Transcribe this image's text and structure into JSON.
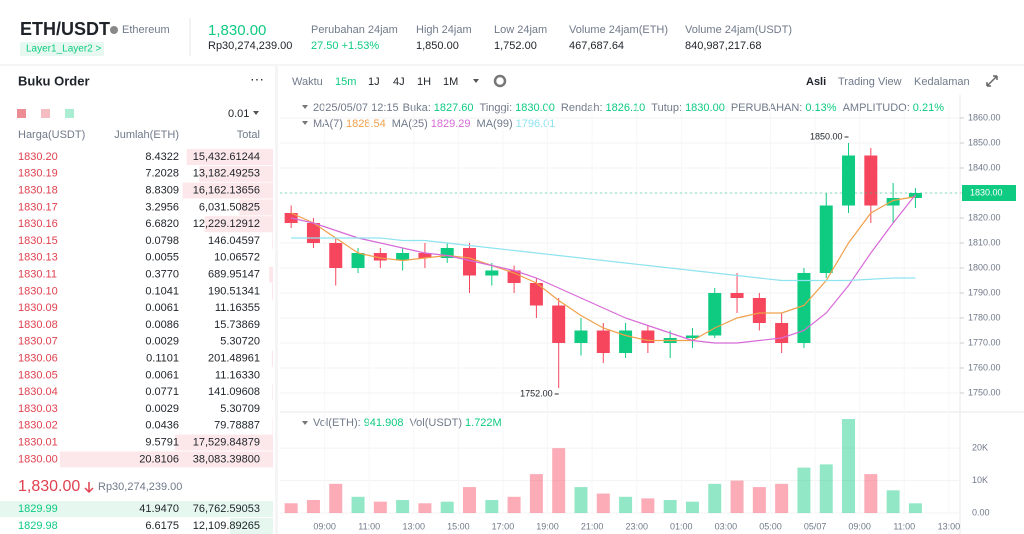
{
  "header": {
    "symbol": "ETH/USDT",
    "name": "Ethereum",
    "tag": "Layer1_Layer2 >",
    "price": "1,830.00",
    "fiat": "Rp30,274,239.00",
    "stats": [
      {
        "label": "Perubahan 24jam",
        "value": "27.50 +1.53%"
      },
      {
        "label": "High 24jam",
        "value": "1,850.00"
      },
      {
        "label": "Low 24jam",
        "value": "1,752.00"
      },
      {
        "label": "Volume 24jam(ETH)",
        "value": "467,687.64"
      },
      {
        "label": "Volume 24jam(USDT)",
        "value": "840,987,217.68"
      }
    ]
  },
  "toolbar": {
    "intervals": [
      "Waktu",
      "15m",
      "1J",
      "4J",
      "1H",
      "1M"
    ],
    "views": [
      "Asli",
      "Trading View",
      "Kedalaman"
    ]
  },
  "info": {
    "date": "2025/05/07 12:15",
    "items": [
      {
        "label": "Buka:",
        "value": "1827.60"
      },
      {
        "label": "Tinggi:",
        "value": "1830.00"
      },
      {
        "label": "Rendah:",
        "value": "1826.10"
      },
      {
        "label": "Tutup:",
        "value": "1830.00"
      },
      {
        "label": "PERUBAHAN:",
        "value": "0.13%"
      },
      {
        "label": "AMPLITUDO:",
        "value": "0.21%"
      }
    ]
  },
  "volume_info": [
    {
      "label": "Vol(ETH):",
      "value": "941.908"
    },
    {
      "label": "Vol(USDT)",
      "value": "1.722M"
    }
  ],
  "order_book": {
    "title": "Buku Order",
    "tick": "0.01",
    "columns": [
      "Harga(USDT)",
      "Jumlah(ETH)",
      "Total"
    ],
    "asks": [
      [
        "1830.20",
        "8.4322",
        "15,432.61244"
      ],
      [
        "1830.19",
        "7.2028",
        "13,182.49253"
      ],
      [
        "1830.18",
        "8.8309",
        "16,162.13656"
      ],
      [
        "1830.17",
        "3.2956",
        "6,031.50825"
      ],
      [
        "1830.16",
        "6.6820",
        "12,229.12912"
      ],
      [
        "1830.15",
        "0.0798",
        "146.04597"
      ],
      [
        "1830.13",
        "0.0055",
        "10.06572"
      ],
      [
        "1830.11",
        "0.3770",
        "689.95147"
      ],
      [
        "1830.10",
        "0.1041",
        "190.51341"
      ],
      [
        "1830.09",
        "0.0061",
        "11.16355"
      ],
      [
        "1830.08",
        "0.0086",
        "15.73869"
      ],
      [
        "1830.07",
        "0.0029",
        "5.30720"
      ],
      [
        "1830.06",
        "0.1101",
        "201.48961"
      ],
      [
        "1830.05",
        "0.0061",
        "11.16330"
      ],
      [
        "1830.04",
        "0.0771",
        "141.09608"
      ],
      [
        "1830.03",
        "0.0029",
        "5.30709"
      ],
      [
        "1830.02",
        "0.0436",
        "79.78887"
      ],
      [
        "1830.01",
        "9.5791",
        "17,529.84879"
      ],
      [
        "1830.00",
        "20.8106",
        "38,083.39800"
      ]
    ],
    "last": "1,830.00",
    "last_fiat": "Rp30,274,239.00",
    "bids": [
      [
        "1829.99",
        "41.9470",
        "76,762.59053"
      ],
      [
        "1829.98",
        "6.6175",
        "12,109.89265"
      ]
    ]
  },
  "chart_data": {
    "type": "candlestick",
    "up_color": "#0ecb81",
    "down_color": "#f6465d",
    "xlim": [
      7,
      37.5
    ],
    "xticks": [
      {
        "value": 9,
        "label": "09:00"
      },
      {
        "value": 11,
        "label": "11:00"
      },
      {
        "value": 13,
        "label": "13:00"
      },
      {
        "value": 15,
        "label": "15:00"
      },
      {
        "value": 17,
        "label": "17:00"
      },
      {
        "value": 19,
        "label": "19:00"
      },
      {
        "value": 21,
        "label": "21:00"
      },
      {
        "value": 23,
        "label": "23:00"
      },
      {
        "value": 25,
        "label": "01:00"
      },
      {
        "value": 27,
        "label": "03:00"
      },
      {
        "value": 29,
        "label": "05:00"
      },
      {
        "value": 31,
        "label": "05/07"
      },
      {
        "value": 33,
        "label": "09:00"
      },
      {
        "value": 35,
        "label": "11:00"
      },
      {
        "value": 37,
        "label": "13:00"
      }
    ],
    "ylim": [
      1745,
      1865
    ],
    "yticks": [
      {
        "value": 1750,
        "label": "1750.00"
      },
      {
        "value": 1760,
        "label": "1760.00"
      },
      {
        "value": 1770,
        "label": "1770.00"
      },
      {
        "value": 1780,
        "label": "1780.00"
      },
      {
        "value": 1790,
        "label": "1790.00"
      },
      {
        "value": 1800,
        "label": "1800.00"
      },
      {
        "value": 1810,
        "label": "1810.00"
      },
      {
        "value": 1820,
        "label": "1820.00"
      },
      {
        "value": 1830,
        "label": "1830.00"
      },
      {
        "value": 1840,
        "label": "1840.00"
      },
      {
        "value": 1850,
        "label": "1850.00"
      },
      {
        "value": 1860,
        "label": "1860.00"
      }
    ],
    "vlim": [
      0,
      29000
    ],
    "vticks": [
      {
        "value": 0,
        "label": "0.00"
      },
      {
        "value": 10000,
        "label": "10K"
      },
      {
        "value": 20000,
        "label": "20K"
      }
    ],
    "last_price": {
      "value": 1830,
      "label": "1830.00"
    },
    "annotations": [
      {
        "t": 32.5,
        "value": 1850,
        "label": "1850.00"
      },
      {
        "t": 19.5,
        "value": 1752,
        "label": "1752.00"
      }
    ],
    "t": [
      7.5,
      8.5,
      9.5,
      10.5,
      11.5,
      12.5,
      13.5,
      14.5,
      15.5,
      16.5,
      17.5,
      18.5,
      19.5,
      20.5,
      21.5,
      22.5,
      23.5,
      24.5,
      25.5,
      26.5,
      27.5,
      28.5,
      29.5,
      30.5,
      31.5,
      32.5,
      33.5,
      34.5,
      35.5
    ],
    "open": [
      1822,
      1818,
      1810,
      1800,
      1806,
      1803,
      1806,
      1804,
      1808,
      1797,
      1799,
      1794,
      1785,
      1770,
      1775,
      1766,
      1775,
      1770,
      1772,
      1773,
      1790,
      1788,
      1778,
      1770,
      1798,
      1825,
      1845,
      1825,
      1828
    ],
    "high": [
      1825,
      1820,
      1812,
      1808,
      1808,
      1808,
      1810,
      1810,
      1810,
      1802,
      1801,
      1796,
      1788,
      1780,
      1778,
      1778,
      1777,
      1775,
      1776,
      1792,
      1798,
      1790,
      1782,
      1800,
      1830,
      1850,
      1848,
      1834,
      1832
    ],
    "low": [
      1816,
      1808,
      1793,
      1798,
      1800,
      1799,
      1800,
      1802,
      1790,
      1793,
      1790,
      1780,
      1752,
      1765,
      1762,
      1764,
      1766,
      1764,
      1768,
      1772,
      1782,
      1775,
      1766,
      1768,
      1796,
      1822,
      1818,
      1818,
      1824
    ],
    "close": [
      1818,
      1810,
      1800,
      1806,
      1803,
      1806,
      1804,
      1808,
      1797,
      1799,
      1794,
      1785,
      1770,
      1775,
      1766,
      1775,
      1770,
      1772,
      1773,
      1790,
      1788,
      1778,
      1770,
      1798,
      1825,
      1845,
      1825,
      1828,
      1830
    ],
    "volume": [
      3000,
      4000,
      9000,
      5000,
      3500,
      4000,
      3000,
      3500,
      8000,
      4000,
      5000,
      12000,
      20000,
      8000,
      6000,
      5000,
      4500,
      4000,
      3500,
      9000,
      10000,
      8000,
      9000,
      14000,
      15000,
      29000,
      12000,
      7000,
      3000
    ],
    "series": [
      {
        "name": "MA(7)",
        "color": "#f0a04b",
        "value_labels_last": "1828.54",
        "values": [
          1822,
          1818,
          1812,
          1806,
          1804,
          1803,
          1804,
          1805,
          1804,
          1801,
          1798,
          1794,
          1787,
          1781,
          1776,
          1773,
          1771,
          1771,
          1771,
          1776,
          1780,
          1782,
          1782,
          1785,
          1795,
          1810,
          1822,
          1827,
          1828.54
        ]
      },
      {
        "name": "MA(25)",
        "color": "#d86ad8",
        "value_labels_last": "1829.29",
        "values": [
          1820,
          1818,
          1815,
          1812,
          1810,
          1808,
          1806,
          1805,
          1803,
          1801,
          1799,
          1796,
          1792,
          1788,
          1784,
          1780,
          1777,
          1774,
          1771,
          1770,
          1770,
          1771,
          1772,
          1775,
          1782,
          1793,
          1806,
          1818,
          1829.29
        ]
      },
      {
        "name": "MA(99)",
        "color": "#8fe3f0",
        "value_labels_last": "1796.01",
        "values": [
          1812,
          1812,
          1812,
          1812,
          1812,
          1811,
          1811,
          1810,
          1809,
          1808,
          1807,
          1806,
          1805,
          1804,
          1803,
          1802,
          1801,
          1800,
          1799,
          1798,
          1797,
          1796,
          1795,
          1795,
          1795,
          1795,
          1795.5,
          1796,
          1796.01
        ]
      }
    ]
  }
}
